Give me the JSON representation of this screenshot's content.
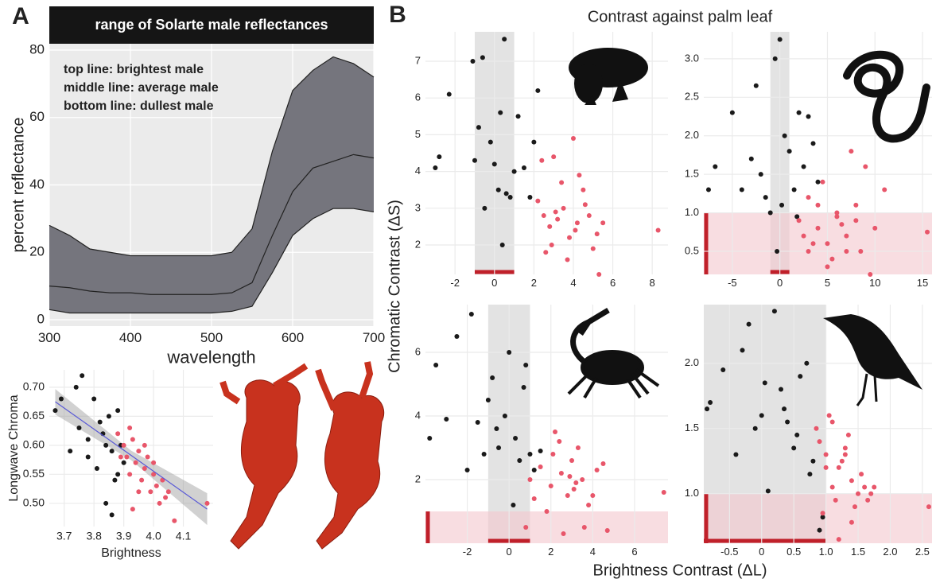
{
  "figure": {
    "panel_a": "A",
    "panel_b": "B",
    "title_b": "Contrast against palm leaf",
    "y_label_b": "Chromatic Contrast (ΔS)",
    "x_label_b": "Brightness Contrast (ΔL)"
  },
  "chart_data": [
    {
      "type": "area",
      "title": "range of Solarte male reflectances",
      "annotations": [
        "top line: brightest male",
        "middle line: average male",
        "bottom line: dullest male"
      ],
      "x_label": "wavelength",
      "y_label": "percent reflectance",
      "x": [
        300,
        325,
        350,
        375,
        400,
        425,
        450,
        475,
        500,
        525,
        550,
        575,
        600,
        625,
        650,
        675,
        700
      ],
      "series": [
        {
          "values": [
            28,
            25,
            21,
            20,
            19,
            19,
            19,
            19,
            19,
            20,
            27,
            50,
            68,
            74,
            78,
            76,
            72
          ]
        },
        {
          "values": [
            10,
            9.5,
            8.5,
            8,
            8,
            7.5,
            7.5,
            7.5,
            7.5,
            8,
            11,
            25,
            38,
            45,
            47,
            49,
            48
          ]
        },
        {
          "values": [
            3,
            2,
            2,
            2,
            2,
            2,
            2,
            2,
            2,
            2.5,
            4,
            14,
            25,
            30,
            33,
            33,
            32
          ]
        }
      ],
      "color": "#75757d",
      "line_color": "#222222",
      "xlim": [
        300,
        700
      ],
      "xticks": [
        300,
        400,
        500,
        600,
        700
      ],
      "ylim": [
        0,
        80
      ],
      "yticks": [
        0,
        20,
        40,
        60,
        80
      ],
      "grid": true
    },
    {
      "type": "scatter",
      "x_label": "Brightness",
      "y_label": "Longwave Chroma",
      "xlim": [
        3.65,
        4.2
      ],
      "xticks": [
        3.7,
        3.8,
        3.9,
        {
          "value": 4.0,
          "label": "4.0"
        },
        4.1
      ],
      "ylim": [
        0.46,
        0.73
      ],
      "yticks": [
        {
          "value": 0.5,
          "label": "0.50"
        },
        0.55,
        {
          "value": 0.6,
          "label": "0.60"
        },
        0.65,
        {
          "value": 0.7,
          "label": "0.70"
        }
      ],
      "grid": true,
      "series": [
        {
          "color": "#1a1a1a",
          "x": [
            3.67,
            3.69,
            3.72,
            3.75,
            3.76,
            3.78,
            3.8,
            3.81,
            3.83,
            3.84,
            3.85,
            3.86,
            3.87,
            3.88,
            3.89,
            3.9,
            3.78,
            3.82,
            3.86,
            3.88,
            3.74,
            3.84
          ],
          "values": [
            0.66,
            0.68,
            0.59,
            0.63,
            0.72,
            0.61,
            0.68,
            0.56,
            0.62,
            0.5,
            0.65,
            0.59,
            0.54,
            0.66,
            0.6,
            0.57,
            0.58,
            0.64,
            0.48,
            0.55,
            0.7,
            0.6
          ]
        },
        {
          "color": "#e8566a",
          "x": [
            3.88,
            3.9,
            3.91,
            3.92,
            3.93,
            3.94,
            3.95,
            3.96,
            3.97,
            3.98,
            3.99,
            4.0,
            4.01,
            4.02,
            4.03,
            4.05,
            4.07,
            4.18,
            3.92,
            3.95,
            3.97,
            4.0,
            3.89,
            4.04,
            3.93
          ],
          "values": [
            0.62,
            0.6,
            0.58,
            0.55,
            0.61,
            0.57,
            0.59,
            0.54,
            0.56,
            0.58,
            0.52,
            0.55,
            0.53,
            0.5,
            0.54,
            0.52,
            0.47,
            0.5,
            0.63,
            0.52,
            0.6,
            0.57,
            0.58,
            0.51,
            0.49
          ]
        }
      ],
      "fit": {
        "x": [
          3.67,
          4.18
        ],
        "values": [
          0.675,
          0.49
        ],
        "color": "#5a5ad6"
      }
    },
    {
      "type": "scatter",
      "xlim": [
        -3.5,
        8.8
      ],
      "xticks": [
        -2,
        0,
        2,
        4,
        6,
        8
      ],
      "ylim": [
        1.2,
        7.8
      ],
      "yticks": [
        2,
        3,
        4,
        5,
        6,
        7
      ],
      "grid": true,
      "jnd": 1,
      "shade_y": false,
      "series": [
        {
          "color": "#1a1a1a",
          "x": [
            -3,
            -2.8,
            -2.3,
            -1.1,
            -1,
            -0.8,
            -0.5,
            -0.2,
            0,
            0.2,
            0.3,
            0.5,
            0.8,
            1,
            1.2,
            1.5,
            1.8,
            2,
            2.2,
            0.6,
            -0.6,
            0.4
          ],
          "values": [
            4.1,
            4.4,
            6.1,
            7,
            4.3,
            5.2,
            3,
            4.8,
            4.2,
            3.5,
            5.6,
            7.6,
            3.3,
            4,
            5.5,
            4.1,
            3.3,
            4.8,
            6.2,
            3.4,
            7.1,
            2.0
          ]
        },
        {
          "color": "#e8566a",
          "x": [
            2.2,
            2.5,
            2.8,
            3,
            3.2,
            3.5,
            3.8,
            4,
            4.2,
            4.5,
            4.8,
            5,
            5.3,
            2.6,
            3.4,
            4.1,
            4.6,
            3.1,
            2.9,
            5.5,
            8.3,
            3.7,
            4.3,
            5.2,
            2.4
          ],
          "values": [
            3.2,
            2.8,
            2.5,
            4.4,
            2.7,
            3,
            2.2,
            4.9,
            2.6,
            3.5,
            2.8,
            1.9,
            1.2,
            1.8,
            3.7,
            2.4,
            3.1,
            2.9,
            2.0,
            2.6,
            2.4,
            1.6,
            3.9,
            2.3,
            4.3
          ]
        }
      ]
    },
    {
      "type": "scatter",
      "xlim": [
        -8,
        16
      ],
      "xticks": [
        -5,
        0,
        5,
        10,
        15
      ],
      "ylim": [
        0.2,
        3.35
      ],
      "yticks": [
        0.5,
        {
          "value": 1,
          "label": "1.0"
        },
        1.5,
        {
          "value": 2,
          "label": "2.0"
        },
        2.5,
        {
          "value": 3,
          "label": "3.0"
        }
      ],
      "grid": true,
      "jnd": 1,
      "shade_y": true,
      "series": [
        {
          "color": "#1a1a1a",
          "x": [
            -7.5,
            -6.8,
            -5,
            -4,
            -3,
            -2.5,
            -2,
            -1.5,
            -1,
            -0.5,
            0,
            0.5,
            1,
            1.5,
            2,
            2.5,
            3,
            3.5,
            4,
            -0.3,
            0.2,
            1.8
          ],
          "values": [
            1.3,
            1.6,
            2.3,
            1.3,
            1.7,
            2.65,
            1.5,
            1.2,
            1.0,
            3.0,
            3.25,
            2.0,
            1.8,
            1.3,
            2.3,
            1.6,
            2.25,
            1.9,
            1.4,
            0.5,
            1.1,
            0.95
          ]
        },
        {
          "color": "#e8566a",
          "x": [
            2,
            3,
            4,
            5,
            6,
            7,
            8,
            9,
            10,
            4.5,
            5.5,
            6.5,
            7.5,
            3.5,
            8.5,
            9.5,
            11,
            4,
            6,
            7,
            15.5,
            5,
            3,
            8,
            2.5
          ],
          "values": [
            0.9,
            1.2,
            0.8,
            0.6,
            1.0,
            0.7,
            0.9,
            1.6,
            0.8,
            1.4,
            0.4,
            0.85,
            1.8,
            0.6,
            0.5,
            0.2,
            1.3,
            1.1,
            0.95,
            0.5,
            0.75,
            0.3,
            0.5,
            1.1,
            0.7
          ]
        }
      ]
    },
    {
      "type": "scatter",
      "xlim": [
        -4,
        7.6
      ],
      "xticks": [
        -2,
        0,
        2,
        4,
        6
      ],
      "ylim": [
        0,
        7.5
      ],
      "yticks": [
        2,
        4,
        6
      ],
      "grid": true,
      "jnd": 1,
      "shade_y": true,
      "series": [
        {
          "color": "#1a1a1a",
          "x": [
            -3.8,
            -3.5,
            -3,
            -2.5,
            -2,
            -1.8,
            -1.5,
            -1,
            -0.8,
            -0.5,
            -0.2,
            0,
            0.3,
            0.5,
            0.8,
            1,
            1.2,
            1.5,
            -1.2,
            0.2,
            0.7,
            -0.6
          ],
          "values": [
            3.3,
            5.6,
            3.9,
            6.5,
            2.3,
            7.2,
            3.8,
            4.5,
            5.2,
            3.0,
            4.0,
            6.0,
            3.3,
            2.6,
            5.6,
            2.8,
            2.3,
            2.9,
            2.8,
            1.2,
            4.9,
            3.6
          ]
        },
        {
          "color": "#e8566a",
          "x": [
            1,
            1.5,
            2,
            2.2,
            2.5,
            2.8,
            3,
            3.2,
            3.5,
            3.8,
            4,
            4.2,
            2.6,
            1.8,
            3.3,
            4.5,
            7.4,
            2.1,
            2.9,
            3.6,
            1.2,
            2.4,
            4.7,
            3.1,
            0.8
          ],
          "values": [
            2.0,
            2.4,
            1.8,
            3.5,
            2.2,
            1.5,
            2.6,
            1.9,
            2.0,
            1.2,
            1.5,
            2.3,
            0.3,
            1.0,
            3.0,
            2.5,
            1.6,
            2.8,
            2.1,
            0.5,
            1.4,
            3.2,
            0.4,
            1.7,
            0.5
          ]
        }
      ]
    },
    {
      "type": "scatter",
      "xlim": [
        -0.9,
        2.65
      ],
      "xticks": [
        -0.5,
        0,
        0.5,
        {
          "value": 1,
          "label": "1.0"
        },
        1.5,
        {
          "value": 2,
          "label": "2.0"
        },
        2.5
      ],
      "ylim": [
        0.62,
        2.45
      ],
      "yticks": [
        {
          "value": 1,
          "label": "1.0"
        },
        1.5,
        {
          "value": 2,
          "label": "2.0"
        }
      ],
      "grid": true,
      "jnd": 1,
      "shade_y": true,
      "series": [
        {
          "color": "#1a1a1a",
          "x": [
            -0.85,
            -0.8,
            -0.6,
            -0.4,
            -0.3,
            -0.2,
            -0.1,
            0,
            0.1,
            0.2,
            0.3,
            0.4,
            0.5,
            0.6,
            0.7,
            0.8,
            0.9,
            0.35,
            0.55,
            0.05,
            0.95,
            0.75
          ],
          "values": [
            1.65,
            1.7,
            1.95,
            1.3,
            2.1,
            2.3,
            1.5,
            1.6,
            1.02,
            2.4,
            1.8,
            1.55,
            1.35,
            1.9,
            2.0,
            1.25,
            0.72,
            1.65,
            1.45,
            1.85,
            0.82,
            1.15
          ]
        },
        {
          "color": "#e8566a",
          "x": [
            0.9,
            1,
            1.1,
            1.2,
            1.3,
            1.4,
            1.5,
            1.6,
            1.7,
            1.05,
            1.15,
            1.25,
            1.35,
            1.45,
            0.95,
            1.55,
            2.6,
            1.0,
            1.2,
            1.3,
            1.65,
            0.85,
            1.1,
            1.4,
            1.75
          ],
          "values": [
            1.4,
            1.3,
            1.55,
            1.2,
            1.35,
            1.1,
            1.0,
            1.05,
            1.0,
            1.6,
            0.95,
            1.25,
            1.45,
            0.9,
            0.85,
            1.15,
            0.9,
            1.2,
            0.65,
            1.3,
            0.95,
            1.5,
            1.05,
            0.78,
            1.05
          ]
        }
      ]
    }
  ]
}
